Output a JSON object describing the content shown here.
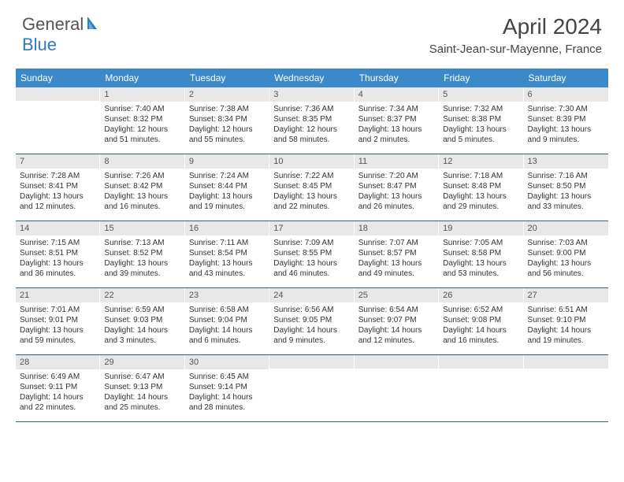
{
  "logo": {
    "part1": "General",
    "part2": "Blue"
  },
  "title": "April 2024",
  "subtitle": "Saint-Jean-sur-Mayenne, France",
  "colors": {
    "header_bg": "#3b89c9",
    "header_text": "#ffffff",
    "daynum_bg": "#e8e8e8",
    "border": "#2c5f8d",
    "body_text": "#333333",
    "logo_blue": "#2e7bc0",
    "logo_gray": "#555555"
  },
  "fonts": {
    "title_size": 28,
    "subtitle_size": 15,
    "dow_size": 12,
    "daynum_size": 11,
    "body_size": 10
  },
  "dow": [
    "Sunday",
    "Monday",
    "Tuesday",
    "Wednesday",
    "Thursday",
    "Friday",
    "Saturday"
  ],
  "weeks": [
    [
      {
        "num": "",
        "lines": []
      },
      {
        "num": "1",
        "lines": [
          "Sunrise: 7:40 AM",
          "Sunset: 8:32 PM",
          "Daylight: 12 hours",
          "and 51 minutes."
        ]
      },
      {
        "num": "2",
        "lines": [
          "Sunrise: 7:38 AM",
          "Sunset: 8:34 PM",
          "Daylight: 12 hours",
          "and 55 minutes."
        ]
      },
      {
        "num": "3",
        "lines": [
          "Sunrise: 7:36 AM",
          "Sunset: 8:35 PM",
          "Daylight: 12 hours",
          "and 58 minutes."
        ]
      },
      {
        "num": "4",
        "lines": [
          "Sunrise: 7:34 AM",
          "Sunset: 8:37 PM",
          "Daylight: 13 hours",
          "and 2 minutes."
        ]
      },
      {
        "num": "5",
        "lines": [
          "Sunrise: 7:32 AM",
          "Sunset: 8:38 PM",
          "Daylight: 13 hours",
          "and 5 minutes."
        ]
      },
      {
        "num": "6",
        "lines": [
          "Sunrise: 7:30 AM",
          "Sunset: 8:39 PM",
          "Daylight: 13 hours",
          "and 9 minutes."
        ]
      }
    ],
    [
      {
        "num": "7",
        "lines": [
          "Sunrise: 7:28 AM",
          "Sunset: 8:41 PM",
          "Daylight: 13 hours",
          "and 12 minutes."
        ]
      },
      {
        "num": "8",
        "lines": [
          "Sunrise: 7:26 AM",
          "Sunset: 8:42 PM",
          "Daylight: 13 hours",
          "and 16 minutes."
        ]
      },
      {
        "num": "9",
        "lines": [
          "Sunrise: 7:24 AM",
          "Sunset: 8:44 PM",
          "Daylight: 13 hours",
          "and 19 minutes."
        ]
      },
      {
        "num": "10",
        "lines": [
          "Sunrise: 7:22 AM",
          "Sunset: 8:45 PM",
          "Daylight: 13 hours",
          "and 22 minutes."
        ]
      },
      {
        "num": "11",
        "lines": [
          "Sunrise: 7:20 AM",
          "Sunset: 8:47 PM",
          "Daylight: 13 hours",
          "and 26 minutes."
        ]
      },
      {
        "num": "12",
        "lines": [
          "Sunrise: 7:18 AM",
          "Sunset: 8:48 PM",
          "Daylight: 13 hours",
          "and 29 minutes."
        ]
      },
      {
        "num": "13",
        "lines": [
          "Sunrise: 7:16 AM",
          "Sunset: 8:50 PM",
          "Daylight: 13 hours",
          "and 33 minutes."
        ]
      }
    ],
    [
      {
        "num": "14",
        "lines": [
          "Sunrise: 7:15 AM",
          "Sunset: 8:51 PM",
          "Daylight: 13 hours",
          "and 36 minutes."
        ]
      },
      {
        "num": "15",
        "lines": [
          "Sunrise: 7:13 AM",
          "Sunset: 8:52 PM",
          "Daylight: 13 hours",
          "and 39 minutes."
        ]
      },
      {
        "num": "16",
        "lines": [
          "Sunrise: 7:11 AM",
          "Sunset: 8:54 PM",
          "Daylight: 13 hours",
          "and 43 minutes."
        ]
      },
      {
        "num": "17",
        "lines": [
          "Sunrise: 7:09 AM",
          "Sunset: 8:55 PM",
          "Daylight: 13 hours",
          "and 46 minutes."
        ]
      },
      {
        "num": "18",
        "lines": [
          "Sunrise: 7:07 AM",
          "Sunset: 8:57 PM",
          "Daylight: 13 hours",
          "and 49 minutes."
        ]
      },
      {
        "num": "19",
        "lines": [
          "Sunrise: 7:05 AM",
          "Sunset: 8:58 PM",
          "Daylight: 13 hours",
          "and 53 minutes."
        ]
      },
      {
        "num": "20",
        "lines": [
          "Sunrise: 7:03 AM",
          "Sunset: 9:00 PM",
          "Daylight: 13 hours",
          "and 56 minutes."
        ]
      }
    ],
    [
      {
        "num": "21",
        "lines": [
          "Sunrise: 7:01 AM",
          "Sunset: 9:01 PM",
          "Daylight: 13 hours",
          "and 59 minutes."
        ]
      },
      {
        "num": "22",
        "lines": [
          "Sunrise: 6:59 AM",
          "Sunset: 9:03 PM",
          "Daylight: 14 hours",
          "and 3 minutes."
        ]
      },
      {
        "num": "23",
        "lines": [
          "Sunrise: 6:58 AM",
          "Sunset: 9:04 PM",
          "Daylight: 14 hours",
          "and 6 minutes."
        ]
      },
      {
        "num": "24",
        "lines": [
          "Sunrise: 6:56 AM",
          "Sunset: 9:05 PM",
          "Daylight: 14 hours",
          "and 9 minutes."
        ]
      },
      {
        "num": "25",
        "lines": [
          "Sunrise: 6:54 AM",
          "Sunset: 9:07 PM",
          "Daylight: 14 hours",
          "and 12 minutes."
        ]
      },
      {
        "num": "26",
        "lines": [
          "Sunrise: 6:52 AM",
          "Sunset: 9:08 PM",
          "Daylight: 14 hours",
          "and 16 minutes."
        ]
      },
      {
        "num": "27",
        "lines": [
          "Sunrise: 6:51 AM",
          "Sunset: 9:10 PM",
          "Daylight: 14 hours",
          "and 19 minutes."
        ]
      }
    ],
    [
      {
        "num": "28",
        "lines": [
          "Sunrise: 6:49 AM",
          "Sunset: 9:11 PM",
          "Daylight: 14 hours",
          "and 22 minutes."
        ]
      },
      {
        "num": "29",
        "lines": [
          "Sunrise: 6:47 AM",
          "Sunset: 9:13 PM",
          "Daylight: 14 hours",
          "and 25 minutes."
        ]
      },
      {
        "num": "30",
        "lines": [
          "Sunrise: 6:45 AM",
          "Sunset: 9:14 PM",
          "Daylight: 14 hours",
          "and 28 minutes."
        ]
      },
      {
        "num": "",
        "lines": []
      },
      {
        "num": "",
        "lines": []
      },
      {
        "num": "",
        "lines": []
      },
      {
        "num": "",
        "lines": []
      }
    ]
  ]
}
